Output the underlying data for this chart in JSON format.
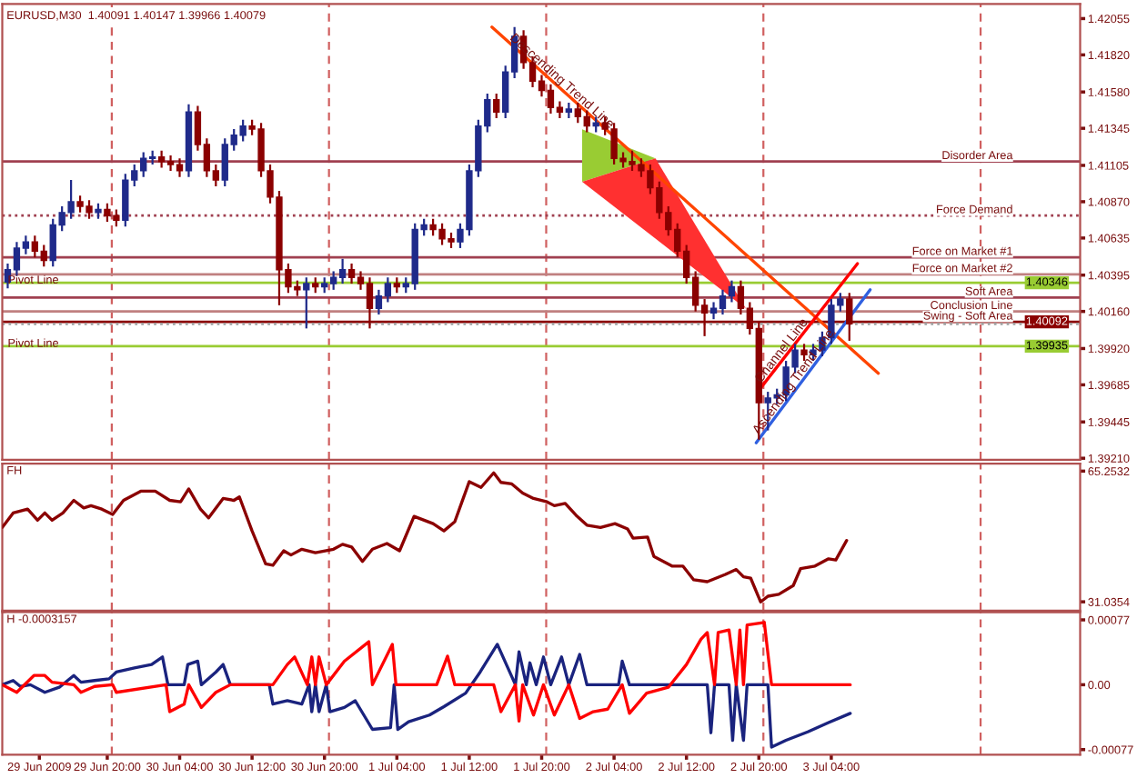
{
  "chart_data": [
    {
      "type": "candlestick",
      "title": "EURUSD,M30  1.40091 1.40147 1.39966 1.40079",
      "x": [
        "2009-06-29T09:00",
        "2009-06-29T10:00",
        "2009-06-29T11:00",
        "2009-06-29T12:00",
        "2009-06-29T13:00",
        "2009-06-29T14:00",
        "2009-06-29T15:00",
        "2009-06-29T16:00",
        "2009-06-29T17:00",
        "2009-06-29T18:00",
        "2009-06-29T19:00",
        "2009-06-29T20:00",
        "2009-06-29T21:00",
        "2009-06-29T22:00",
        "2009-06-29T23:00",
        "2009-06-30T00:00",
        "2009-06-30T01:00",
        "2009-06-30T02:00",
        "2009-06-30T03:00",
        "2009-06-30T04:00",
        "2009-06-30T05:00",
        "2009-06-30T06:00",
        "2009-06-30T07:00",
        "2009-06-30T08:00",
        "2009-06-30T09:00",
        "2009-06-30T10:00",
        "2009-06-30T11:00",
        "2009-06-30T12:00",
        "2009-06-30T13:00",
        "2009-06-30T14:00",
        "2009-06-30T15:00",
        "2009-06-30T16:00",
        "2009-06-30T17:00",
        "2009-06-30T18:00",
        "2009-06-30T19:00",
        "2009-06-30T20:00",
        "2009-06-30T21:00",
        "2009-06-30T22:00",
        "2009-06-30T23:00",
        "2009-07-01T00:00",
        "2009-07-01T01:00",
        "2009-07-01T02:00",
        "2009-07-01T03:00",
        "2009-07-01T04:00",
        "2009-07-01T05:00",
        "2009-07-01T06:00",
        "2009-07-01T07:00",
        "2009-07-01T08:00",
        "2009-07-01T09:00",
        "2009-07-01T10:00",
        "2009-07-01T11:00",
        "2009-07-01T12:00",
        "2009-07-01T13:00",
        "2009-07-01T14:00",
        "2009-07-01T15:00",
        "2009-07-01T16:00",
        "2009-07-01T17:00",
        "2009-07-01T18:00",
        "2009-07-01T19:00",
        "2009-07-01T20:00",
        "2009-07-01T21:00",
        "2009-07-01T22:00",
        "2009-07-01T23:00",
        "2009-07-02T00:00",
        "2009-07-02T01:00",
        "2009-07-02T02:00",
        "2009-07-02T03:00",
        "2009-07-02T04:00",
        "2009-07-02T05:00",
        "2009-07-02T06:00",
        "2009-07-02T07:00",
        "2009-07-02T08:00",
        "2009-07-02T09:00",
        "2009-07-02T10:00",
        "2009-07-02T11:00",
        "2009-07-02T12:00",
        "2009-07-02T13:00",
        "2009-07-02T14:00",
        "2009-07-02T15:00",
        "2009-07-02T16:00",
        "2009-07-02T17:00",
        "2009-07-02T18:00",
        "2009-07-02T19:00",
        "2009-07-02T20:00",
        "2009-07-02T21:00",
        "2009-07-02T22:00",
        "2009-07-02T23:00",
        "2009-07-03T00:00",
        "2009-07-03T01:00",
        "2009-07-03T02:00",
        "2009-07-03T03:00",
        "2009-07-03T04:00",
        "2009-07-03T05:00",
        "2009-07-03T06:00"
      ],
      "ohlc": [
        [
          1.4035,
          1.4047,
          1.4031,
          1.4043
        ],
        [
          1.4043,
          1.4061,
          1.4039,
          1.4057
        ],
        [
          1.4057,
          1.4065,
          1.4053,
          1.4061
        ],
        [
          1.4061,
          1.4065,
          1.4051,
          1.4055
        ],
        [
          1.4055,
          1.4059,
          1.4045,
          1.4049
        ],
        [
          1.4049,
          1.4076,
          1.4045,
          1.4072
        ],
        [
          1.4072,
          1.4084,
          1.4068,
          1.408
        ],
        [
          1.408,
          1.4101,
          1.4076,
          1.4087
        ],
        [
          1.4087,
          1.4091,
          1.408,
          1.4084
        ],
        [
          1.4084,
          1.4088,
          1.4076,
          1.408
        ],
        [
          1.408,
          1.4086,
          1.4076,
          1.4082
        ],
        [
          1.4082,
          1.4086,
          1.4074,
          1.4078
        ],
        [
          1.4078,
          1.4082,
          1.4071,
          1.4075
        ],
        [
          1.4075,
          1.4105,
          1.4071,
          1.4101
        ],
        [
          1.4101,
          1.4111,
          1.4097,
          1.4107
        ],
        [
          1.4107,
          1.4119,
          1.4103,
          1.4115
        ],
        [
          1.4115,
          1.412,
          1.4111,
          1.4116
        ],
        [
          1.4116,
          1.412,
          1.4109,
          1.4113
        ],
        [
          1.4113,
          1.4117,
          1.4107,
          1.4111
        ],
        [
          1.4111,
          1.4115,
          1.4103,
          1.4107
        ],
        [
          1.4107,
          1.415,
          1.4103,
          1.4145
        ],
        [
          1.4145,
          1.4149,
          1.412,
          1.4124
        ],
        [
          1.4124,
          1.4128,
          1.4103,
          1.4107
        ],
        [
          1.4107,
          1.4111,
          1.4097,
          1.4101
        ],
        [
          1.4101,
          1.4128,
          1.4097,
          1.4124
        ],
        [
          1.4124,
          1.4134,
          1.412,
          1.413
        ],
        [
          1.413,
          1.414,
          1.4126,
          1.4136
        ],
        [
          1.4136,
          1.414,
          1.413,
          1.4134
        ],
        [
          1.4134,
          1.4138,
          1.4103,
          1.4107
        ],
        [
          1.4107,
          1.4111,
          1.4086,
          1.409
        ],
        [
          1.409,
          1.4094,
          1.402,
          1.4043
        ],
        [
          1.4043,
          1.4047,
          1.4028,
          1.4032
        ],
        [
          1.4032,
          1.4036,
          1.4026,
          1.403
        ],
        [
          1.403,
          1.4038,
          1.4005,
          1.4034
        ],
        [
          1.4034,
          1.4038,
          1.4028,
          1.4032
        ],
        [
          1.4032,
          1.4038,
          1.4028,
          1.4034
        ],
        [
          1.4034,
          1.4042,
          1.403,
          1.4038
        ],
        [
          1.4038,
          1.405,
          1.4034,
          1.4043
        ],
        [
          1.4043,
          1.4047,
          1.4034,
          1.4038
        ],
        [
          1.4038,
          1.4042,
          1.403,
          1.4034
        ],
        [
          1.4034,
          1.4038,
          1.4005,
          1.4018
        ],
        [
          1.4018,
          1.403,
          1.4014,
          1.4026
        ],
        [
          1.4026,
          1.4038,
          1.4022,
          1.4034
        ],
        [
          1.4034,
          1.4038,
          1.4028,
          1.4032
        ],
        [
          1.4032,
          1.4038,
          1.4028,
          1.4034
        ],
        [
          1.4034,
          1.4073,
          1.403,
          1.4069
        ],
        [
          1.4069,
          1.4076,
          1.4065,
          1.4072
        ],
        [
          1.4072,
          1.4076,
          1.4065,
          1.4069
        ],
        [
          1.4069,
          1.4073,
          1.4059,
          1.4063
        ],
        [
          1.4063,
          1.4067,
          1.4057,
          1.4061
        ],
        [
          1.4061,
          1.4073,
          1.4057,
          1.4069
        ],
        [
          1.4069,
          1.4111,
          1.4065,
          1.4107
        ],
        [
          1.4107,
          1.414,
          1.4103,
          1.4136
        ],
        [
          1.4136,
          1.4157,
          1.4132,
          1.4153
        ],
        [
          1.4153,
          1.4157,
          1.4141,
          1.4145
        ],
        [
          1.4145,
          1.4175,
          1.4141,
          1.4171
        ],
        [
          1.4171,
          1.42,
          1.4167,
          1.4194
        ],
        [
          1.4194,
          1.4198,
          1.4173,
          1.4177
        ],
        [
          1.4177,
          1.4181,
          1.4161,
          1.4165
        ],
        [
          1.4165,
          1.4169,
          1.4155,
          1.4159
        ],
        [
          1.4159,
          1.4163,
          1.4144,
          1.4148
        ],
        [
          1.4148,
          1.4152,
          1.4141,
          1.4145
        ],
        [
          1.4145,
          1.4151,
          1.4141,
          1.4147
        ],
        [
          1.4147,
          1.4151,
          1.4138,
          1.4142
        ],
        [
          1.4142,
          1.4146,
          1.4132,
          1.4136
        ],
        [
          1.4136,
          1.4142,
          1.4132,
          1.4138
        ],
        [
          1.4138,
          1.4142,
          1.413,
          1.4134
        ],
        [
          1.4134,
          1.4138,
          1.4111,
          1.4115
        ],
        [
          1.4115,
          1.4119,
          1.4109,
          1.4113
        ],
        [
          1.4113,
          1.412,
          1.4107,
          1.4111
        ],
        [
          1.4111,
          1.4115,
          1.4103,
          1.4107
        ],
        [
          1.4107,
          1.4111,
          1.4092,
          1.4096
        ],
        [
          1.4096,
          1.41,
          1.4076,
          1.408
        ],
        [
          1.408,
          1.4084,
          1.4065,
          1.4069
        ],
        [
          1.4069,
          1.4073,
          1.4051,
          1.4055
        ],
        [
          1.4055,
          1.4059,
          1.4034,
          1.4038
        ],
        [
          1.4038,
          1.4042,
          1.4016,
          1.402
        ],
        [
          1.402,
          1.4024,
          1.4,
          1.4015
        ],
        [
          1.4015,
          1.4022,
          1.4011,
          1.4018
        ],
        [
          1.4018,
          1.403,
          1.4014,
          1.4026
        ],
        [
          1.4026,
          1.4036,
          1.4022,
          1.4032
        ],
        [
          1.4032,
          1.4036,
          1.4014,
          1.4018
        ],
        [
          1.4018,
          1.4022,
          1.4001,
          1.4005
        ],
        [
          1.4005,
          1.4009,
          1.3933,
          1.3957
        ],
        [
          1.3957,
          1.3964,
          1.3939,
          1.396
        ],
        [
          1.396,
          1.3966,
          1.3956,
          1.3962
        ],
        [
          1.3962,
          1.3984,
          1.3958,
          1.398
        ],
        [
          1.398,
          1.3995,
          1.3976,
          1.3991
        ],
        [
          1.3991,
          1.3995,
          1.3984,
          1.3988
        ],
        [
          1.3988,
          1.3995,
          1.3984,
          1.3991
        ],
        [
          1.3991,
          1.4003,
          1.3987,
          1.3999
        ],
        [
          1.3999,
          1.4024,
          1.3995,
          1.402
        ],
        [
          1.402,
          1.4028,
          1.4016,
          1.4024
        ],
        [
          1.4024,
          1.4028,
          1.3997,
          1.4008
        ]
      ],
      "colors": [
        "#1f2a8a",
        "#1f2a8a",
        "#1f2a8a",
        "#8b0000",
        "#8b0000",
        "#1f2a8a",
        "#1f2a8a",
        "#1f2a8a",
        "#8b0000",
        "#8b0000",
        "#1f2a8a",
        "#8b0000",
        "#8b0000",
        "#1f2a8a",
        "#1f2a8a",
        "#1f2a8a",
        "#1f2a8a",
        "#8b0000",
        "#8b0000",
        "#8b0000",
        "#1f2a8a",
        "#8b0000",
        "#8b0000",
        "#8b0000",
        "#1f2a8a",
        "#1f2a8a",
        "#1f2a8a",
        "#8b0000",
        "#8b0000",
        "#8b0000",
        "#8b0000",
        "#8b0000",
        "#8b0000",
        "#1f2a8a",
        "#8b0000",
        "#1f2a8a",
        "#1f2a8a",
        "#1f2a8a",
        "#8b0000",
        "#8b0000",
        "#8b0000",
        "#1f2a8a",
        "#1f2a8a",
        "#8b0000",
        "#1f2a8a",
        "#1f2a8a",
        "#1f2a8a",
        "#8b0000",
        "#8b0000",
        "#8b0000",
        "#1f2a8a",
        "#1f2a8a",
        "#1f2a8a",
        "#1f2a8a",
        "#8b0000",
        "#1f2a8a",
        "#1f2a8a",
        "#8b0000",
        "#8b0000",
        "#8b0000",
        "#8b0000",
        "#8b0000",
        "#1f2a8a",
        "#8b0000",
        "#8b0000",
        "#1f2a8a",
        "#8b0000",
        "#8b0000",
        "#8b0000",
        "#8b0000",
        "#8b0000",
        "#8b0000",
        "#8b0000",
        "#8b0000",
        "#8b0000",
        "#8b0000",
        "#8b0000",
        "#8b0000",
        "#1f2a8a",
        "#1f2a8a",
        "#1f2a8a",
        "#8b0000",
        "#8b0000",
        "#8b0000",
        "#1f2a8a",
        "#1f2a8a",
        "#1f2a8a",
        "#1f2a8a",
        "#8b0000",
        "#1f2a8a",
        "#1f2a8a",
        "#1f2a8a",
        "#1f2a8a",
        "#8b0000"
      ],
      "series": [
        {
          "type": "line",
          "name": "Descending Trend Line",
          "color": "#ff4500",
          "x": [
            "2009-07-01T14:30",
            "2009-07-03T09:12"
          ],
          "values": [
            1.42,
            1.3976
          ]
        },
        {
          "type": "line",
          "name": "Channel Line",
          "color": "#ff0000",
          "x": [
            "2009-07-02T20:00",
            "2009-07-03T06:54"
          ],
          "values": [
            1.3965,
            1.4047
          ]
        },
        {
          "type": "line",
          "name": "Ascending Trend Line",
          "color": "#3060e0",
          "x": [
            "2009-07-02T19:42",
            "2009-07-03T08:18"
          ],
          "values": [
            1.3931,
            1.403
          ]
        }
      ],
      "xlim": [
        "2009-06-29T08:24",
        "2009-07-04T07:30"
      ],
      "ylim": [
        1.392,
        1.4215
      ],
      "yticks": [
        1.42055,
        {
          "value": 1.4182,
          "label": "1.41820"
        },
        {
          "value": 1.4158,
          "label": "1.41580"
        },
        1.41345,
        1.41105,
        {
          "value": 1.4087,
          "label": "1.40870"
        },
        1.40635,
        1.40395,
        {
          "value": 1.4016,
          "label": "1.40160"
        },
        {
          "value": 1.3992,
          "label": "1.39920"
        },
        1.39685,
        1.39445,
        {
          "value": 1.3921,
          "label": "1.39210"
        }
      ],
      "tick_labels": "y",
      "ref_lines": [
        {
          "axis": "x",
          "value": "2009-06-29T20:30",
          "color": "#d06060",
          "line_style": "dashed"
        },
        {
          "axis": "x",
          "value": "2009-06-30T20:30",
          "color": "#d06060",
          "line_style": "dashed"
        },
        {
          "axis": "x",
          "value": "2009-07-01T20:30",
          "color": "#d06060",
          "line_style": "dashed"
        },
        {
          "axis": "x",
          "value": "2009-07-02T20:30",
          "color": "#d06060",
          "line_style": "dashed"
        },
        {
          "axis": "x",
          "value": "2009-07-03T20:30",
          "color": "#d06060",
          "line_style": "dashed"
        },
        {
          "axis": "y",
          "value": 1.4113,
          "label": "Disorder Area",
          "color": "#a04050",
          "line_style": "solid"
        },
        {
          "axis": "y",
          "value": 1.4078,
          "label": "Force Demand",
          "color": "#a04050",
          "line_style": "dotted"
        },
        {
          "axis": "y",
          "value": 1.4051,
          "label": "Force on Market #1",
          "color": "#a04050",
          "line_style": "solid"
        },
        {
          "axis": "y",
          "value": 1.404,
          "label": "Force on Market #2",
          "color": "#c08080",
          "line_style": "solid"
        },
        {
          "axis": "y",
          "value": 1.4025,
          "label": "Soft Area",
          "color": "#a04050",
          "line_style": "solid"
        },
        {
          "axis": "y",
          "value": 1.4016,
          "label": "Conclusion Line",
          "color": "#c08080",
          "line_style": "solid"
        },
        {
          "axis": "y",
          "value": 1.40092,
          "label": "Swing - Soft Area",
          "color": "#8b0000",
          "line_style": "solid"
        },
        {
          "axis": "y",
          "value": 1.40346,
          "color": "#99cc33",
          "line_style": "solid"
        },
        {
          "axis": "y",
          "value": 1.39935,
          "color": "#99cc33",
          "line_style": "solid"
        },
        {
          "axis": "y",
          "value": 1.40079,
          "color": "#a0a0a0",
          "line_style": "dotted"
        }
      ],
      "annotations": [
        {
          "text": "Pivot Line",
          "x": "2009-06-29T09:00",
          "y": 1.4036
        },
        {
          "text": "Pivot Line",
          "x": "2009-06-29T09:00",
          "y": 1.3995
        },
        {
          "text": "1.40346",
          "x": "2009-07-04T01:30",
          "y": 1.40346
        },
        {
          "text": "1.40092",
          "x": "2009-07-04T01:30",
          "y": 1.40092
        },
        {
          "text": "1.39935",
          "x": "2009-07-04T01:30",
          "y": 1.39935
        }
      ]
    },
    {
      "type": "line",
      "title": "FH",
      "x": [
        "2009-06-29T08:24",
        "2009-06-29T09:36",
        "2009-06-29T11:12",
        "2009-06-29T12:18",
        "2009-06-29T13:06",
        "2009-06-29T13:54",
        "2009-06-29T15:06",
        "2009-06-29T16:18",
        "2009-06-29T17:24",
        "2009-06-29T18:12",
        "2009-06-29T19:24",
        "2009-06-29T20:36",
        "2009-06-29T21:48",
        "2009-06-29T23:42",
        "2009-06-30T01:18",
        "2009-06-30T02:54",
        "2009-06-30T04:06",
        "2009-06-30T05:00",
        "2009-06-30T06:18",
        "2009-06-30T07:12",
        "2009-06-30T08:48",
        "2009-06-30T10:00",
        "2009-06-30T10:36",
        "2009-06-30T12:00",
        "2009-06-30T13:30",
        "2009-06-30T14:18",
        "2009-06-30T15:30",
        "2009-06-30T16:18",
        "2009-06-30T17:30",
        "2009-06-30T19:00",
        "2009-06-30T21:00",
        "2009-06-30T22:00",
        "2009-06-30T23:00",
        "2009-07-01T00:12",
        "2009-07-01T01:18",
        "2009-07-01T02:54",
        "2009-07-01T04:18",
        "2009-07-01T05:54",
        "2009-07-01T08:00",
        "2009-07-01T09:12",
        "2009-07-01T10:24",
        "2009-07-01T12:00",
        "2009-07-01T13:18",
        "2009-07-01T14:42",
        "2009-07-01T15:30",
        "2009-07-01T16:42",
        "2009-07-01T17:54",
        "2009-07-01T19:06",
        "2009-07-01T20:36",
        "2009-07-01T21:24",
        "2009-07-01T22:36",
        "2009-07-01T23:48",
        "2009-07-02T01:00",
        "2009-07-02T02:30",
        "2009-07-02T04:06",
        "2009-07-02T05:30",
        "2009-07-02T06:06",
        "2009-07-02T07:42",
        "2009-07-02T08:24",
        "2009-07-02T10:24",
        "2009-07-02T11:36",
        "2009-07-02T12:48",
        "2009-07-02T14:18",
        "2009-07-02T16:18",
        "2009-07-02T17:30",
        "2009-07-02T18:18",
        "2009-07-02T19:06",
        "2009-07-02T20:12",
        "2009-07-02T21:00",
        "2009-07-02T22:12",
        "2009-07-02T23:48",
        "2009-07-03T00:36",
        "2009-07-03T02:12",
        "2009-07-03T03:42",
        "2009-07-03T04:30",
        "2009-07-03T05:42"
      ],
      "series": [
        {
          "color": "#8b0000",
          "values": [
            50.5,
            54.3,
            55.3,
            52.4,
            54.3,
            52.4,
            54.3,
            57.6,
            55.6,
            56.2,
            55.3,
            53.9,
            57.6,
            60.0,
            60.0,
            57.6,
            57.2,
            60.6,
            55.3,
            53.0,
            58.1,
            57.6,
            58.5,
            49.6,
            41.0,
            40.6,
            44.4,
            43.3,
            44.8,
            43.9,
            44.8,
            46.1,
            45.4,
            41.6,
            44.8,
            46.3,
            44.4,
            53.4,
            51.5,
            49.6,
            52.0,
            62.5,
            61.0,
            64.8,
            62.3,
            61.9,
            59.5,
            58.1,
            57.2,
            56.2,
            56.8,
            53.7,
            51.1,
            50.5,
            51.5,
            50.1,
            47.7,
            48.0,
            42.9,
            40.4,
            40.4,
            36.8,
            36.3,
            38.2,
            39.5,
            37.6,
            37.2,
            31.0,
            32.5,
            33.0,
            35.3,
            39.7,
            40.4,
            42.3,
            42.0,
            47.1
          ]
        }
      ],
      "xlim": [
        "2009-06-29T08:24",
        "2009-07-04T07:30"
      ],
      "ylim": [
        28.7,
        67.2
      ],
      "yticks": [
        65.2532,
        31.0354
      ],
      "tick_labels": "y",
      "ref_lines": [
        {
          "axis": "x",
          "value": "2009-06-29T20:30",
          "color": "#d06060",
          "line_style": "dashed"
        },
        {
          "axis": "x",
          "value": "2009-06-30T20:30",
          "color": "#d06060",
          "line_style": "dashed"
        },
        {
          "axis": "x",
          "value": "2009-07-01T20:30",
          "color": "#d06060",
          "line_style": "dashed"
        },
        {
          "axis": "x",
          "value": "2009-07-02T20:30",
          "color": "#d06060",
          "line_style": "dashed"
        },
        {
          "axis": "x",
          "value": "2009-07-03T20:30",
          "color": "#d06060",
          "line_style": "dashed"
        }
      ]
    },
    {
      "type": "line",
      "title": "H -0.0003157",
      "series": [
        {
          "color": "#1a237e",
          "x": [
            "2009-06-29T08:24",
            "2009-06-29T09:36",
            "2009-06-29T10:24",
            "2009-06-29T11:30",
            "2009-06-29T13:06",
            "2009-06-29T14:42",
            "2009-06-29T16:18",
            "2009-06-29T17:06",
            "2009-06-29T18:36",
            "2009-06-29T20:12",
            "2009-06-29T21:00",
            "2009-06-29T23:00",
            "2009-06-30T00:54",
            "2009-06-30T02:06",
            "2009-06-30T02:42",
            "2009-06-30T04:30",
            "2009-06-30T04:54",
            "2009-06-30T06:00",
            "2009-06-30T06:24",
            "2009-06-30T08:00",
            "2009-06-30T08:48",
            "2009-06-30T09:36",
            "2009-06-30T13:54",
            "2009-06-30T14:18",
            "2009-06-30T15:54",
            "2009-06-30T17:30",
            "2009-06-30T18:18",
            "2009-06-30T18:36",
            "2009-06-30T19:00",
            "2009-06-30T19:24",
            "2009-06-30T20:12",
            "2009-06-30T20:36",
            "2009-06-30T22:12",
            "2009-06-30T23:24",
            "2009-07-01T01:18",
            "2009-07-01T03:18",
            "2009-07-01T03:42",
            "2009-07-01T04:06",
            "2009-07-01T05:18",
            "2009-07-01T07:36",
            "2009-07-01T09:12",
            "2009-07-01T11:36",
            "2009-07-01T13:12",
            "2009-07-01T15:06",
            "2009-07-01T17:06",
            "2009-07-01T17:30",
            "2009-07-01T18:18",
            "2009-07-01T18:42",
            "2009-07-01T19:24",
            "2009-07-01T20:12",
            "2009-07-01T21:00",
            "2009-07-01T22:12",
            "2009-07-01T23:00",
            "2009-07-02T00:12",
            "2009-07-02T01:00",
            "2009-07-02T04:30",
            "2009-07-02T04:54",
            "2009-07-02T05:42",
            "2009-07-02T14:18",
            "2009-07-02T14:42",
            "2009-07-02T15:06",
            "2009-07-02T16:42",
            "2009-07-02T17:06",
            "2009-07-02T17:30",
            "2009-07-02T18:18",
            "2009-07-02T18:42",
            "2009-07-02T21:00",
            "2009-07-02T21:24",
            "2009-07-02T23:00",
            "2009-07-03T01:24",
            "2009-07-03T03:42",
            "2009-07-03T06:06"
          ],
          "values": [
            0,
            5e-05,
            -2e-05,
            0,
            -9e-05,
            -3e-05,
            0.00011,
            3e-05,
            5e-05,
            7e-05,
            0.00015,
            0.0002,
            0.00024,
            0.00033,
            0,
            0,
            0.00024,
            0.00028,
            0,
            0.00015,
            0.00024,
            0,
            0,
            -0.00023,
            -0.00019,
            -0.00023,
            0,
            -0.00032,
            0,
            -0.00032,
            0,
            -0.00032,
            -0.00027,
            -0.00019,
            -0.00053,
            -0.00051,
            0,
            -0.00053,
            -0.00044,
            -0.00036,
            -0.00026,
            -0.0001,
            0.00015,
            0.00048,
            0,
            0.00039,
            0,
            0.00026,
            0,
            0.00033,
            0,
            0.00033,
            0,
            0.00036,
            0,
            0,
            0.00028,
            0,
            0,
            -0.00057,
            0,
            0,
            -0.00066,
            0,
            -0.00066,
            0,
            0,
            -0.00074,
            -0.00066,
            -0.00056,
            -0.00045,
            -0.00034
          ]
        },
        {
          "color": "#ff0000",
          "x": [
            "2009-06-29T08:24",
            "2009-06-29T10:00",
            "2009-06-29T11:54",
            "2009-06-29T13:06",
            "2009-06-29T13:54",
            "2009-06-29T16:18",
            "2009-06-29T17:06",
            "2009-06-29T18:36",
            "2009-06-29T20:36",
            "2009-06-29T21:00",
            "2009-06-30T02:30",
            "2009-06-30T02:54",
            "2009-06-30T04:30",
            "2009-06-30T05:00",
            "2009-06-30T06:24",
            "2009-06-30T08:00",
            "2009-06-30T09:36",
            "2009-06-30T14:18",
            "2009-06-30T15:54",
            "2009-06-30T16:42",
            "2009-06-30T18:06",
            "2009-06-30T18:36",
            "2009-06-30T19:00",
            "2009-06-30T19:24",
            "2009-06-30T20:12",
            "2009-06-30T22:12",
            "2009-07-01T00:54",
            "2009-07-01T01:18",
            "2009-07-01T03:30",
            "2009-07-01T03:54",
            "2009-07-01T08:24",
            "2009-07-01T09:36",
            "2009-07-01T10:24",
            "2009-07-01T14:42",
            "2009-07-01T15:30",
            "2009-07-01T17:06",
            "2009-07-01T17:30",
            "2009-07-01T17:54",
            "2009-07-01T19:06",
            "2009-07-01T20:12",
            "2009-07-01T21:24",
            "2009-07-01T23:00",
            "2009-07-02T00:12",
            "2009-07-02T01:42",
            "2009-07-02T03:18",
            "2009-07-02T04:54",
            "2009-07-02T05:42",
            "2009-07-02T07:36",
            "2009-07-02T10:00",
            "2009-07-02T12:00",
            "2009-07-02T13:36",
            "2009-07-02T14:18",
            "2009-07-02T15:06",
            "2009-07-02T15:30",
            "2009-07-02T16:42",
            "2009-07-02T17:30",
            "2009-07-02T17:54",
            "2009-07-02T18:18",
            "2009-07-02T18:42",
            "2009-07-02T20:36",
            "2009-07-02T21:24",
            "2009-07-03T06:06"
          ],
          "values": [
            0,
            -9e-05,
            0.00011,
            0.00011,
            3e-05,
            0,
            -9e-05,
            -2e-05,
            0,
            -9e-05,
            0,
            -0.00032,
            -0.00023,
            0,
            -0.00027,
            -9e-05,
            0,
            0,
            0.00024,
            0.00033,
            0,
            0.00033,
            0,
            0.00033,
            0,
            0.00028,
            0.00051,
            0,
            0.00048,
            0,
            0,
            0.00034,
            0,
            0,
            -0.00032,
            0,
            -0.00043,
            0,
            -0.00036,
            0,
            -0.00036,
            0,
            -0.0004,
            -0.00032,
            -0.00029,
            0,
            -0.00034,
            -0.0001,
            -3e-05,
            0.00024,
            0.00054,
            0.00062,
            0,
            0.00062,
            0.00065,
            0,
            0.00065,
            0,
            0.00071,
            0.00074,
            0,
            0
          ]
        }
      ],
      "xlim": [
        "2009-06-29T08:24",
        "2009-07-04T07:30"
      ],
      "ylim": [
        -0.00083,
        0.00086
      ],
      "yticks": [
        {
          "value": 0.00077,
          "label": "0.00077"
        },
        {
          "value": 0,
          "label": "0.00"
        },
        {
          "value": -0.00077,
          "label": "-0.00077"
        }
      ],
      "xticks": [
        {
          "value": "2009-06-29T12:30",
          "label": "29 Jun 2009"
        },
        {
          "value": "2009-06-29T20:00",
          "label": "29 Jun 20:00"
        },
        {
          "value": "2009-06-30T04:00",
          "label": "30 Jun 04:00"
        },
        {
          "value": "2009-06-30T12:00",
          "label": "30 Jun 12:00"
        },
        {
          "value": "2009-06-30T20:00",
          "label": "30 Jun 20:00"
        },
        {
          "value": "2009-07-01T04:00",
          "label": "1 Jul 04:00"
        },
        {
          "value": "2009-07-01T12:00",
          "label": "1 Jul 12:00"
        },
        {
          "value": "2009-07-01T20:00",
          "label": "1 Jul 20:00"
        },
        {
          "value": "2009-07-02T04:00",
          "label": "2 Jul 04:00"
        },
        {
          "value": "2009-07-02T12:00",
          "label": "2 Jul 12:00"
        },
        {
          "value": "2009-07-02T20:00",
          "label": "2 Jul 20:00"
        },
        {
          "value": "2009-07-03T04:00",
          "label": "3 Jul 04:00"
        }
      ],
      "ref_lines": [
        {
          "axis": "x",
          "value": "2009-06-29T20:30",
          "color": "#d06060",
          "line_style": "dashed"
        },
        {
          "axis": "x",
          "value": "2009-06-30T20:30",
          "color": "#d06060",
          "line_style": "dashed"
        },
        {
          "axis": "x",
          "value": "2009-07-01T20:30",
          "color": "#d06060",
          "line_style": "dashed"
        },
        {
          "axis": "x",
          "value": "2009-07-02T20:30",
          "color": "#d06060",
          "line_style": "dashed"
        },
        {
          "axis": "x",
          "value": "2009-07-03T20:30",
          "color": "#d06060",
          "line_style": "dashed"
        }
      ]
    }
  ]
}
